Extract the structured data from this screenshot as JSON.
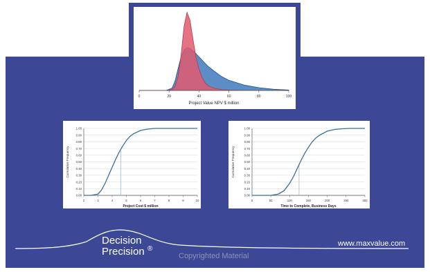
{
  "colors": {
    "background": "#3c4796",
    "dist_red": "#e05a6e",
    "dist_blue": "#2f6db6",
    "curve": "#3c6e96",
    "guide": "#8fb3c8"
  },
  "branding": {
    "name_line1": "Decision",
    "name_line2": "Precision",
    "reg_mark": "®",
    "website": "www.maxvalue.com",
    "copyright": "Copyrighted Material"
  },
  "chart_data": [
    {
      "type": "area",
      "title": "",
      "xlabel": "Project Value NPV $ million",
      "ylabel": "",
      "xlim": [
        0,
        100
      ],
      "x_ticks": [
        0,
        20,
        40,
        60,
        80,
        100
      ],
      "grid": false,
      "x": [
        0,
        18,
        22,
        24,
        26,
        28,
        30,
        32,
        34,
        36,
        38,
        40,
        42,
        44,
        46,
        50,
        55,
        60,
        70,
        80,
        90,
        100
      ],
      "series": [
        {
          "values": [
            0,
            0,
            0.01,
            0.05,
            0.18,
            0.45,
            0.82,
            1.0,
            0.9,
            0.65,
            0.42,
            0.27,
            0.17,
            0.1,
            0.06,
            0.03,
            0.01,
            0.005,
            0,
            0,
            0,
            0
          ]
        },
        {
          "values": [
            0,
            0,
            0.03,
            0.12,
            0.28,
            0.43,
            0.52,
            0.55,
            0.54,
            0.51,
            0.47,
            0.43,
            0.39,
            0.35,
            0.31,
            0.25,
            0.18,
            0.13,
            0.07,
            0.035,
            0.015,
            0.005
          ]
        }
      ]
    },
    {
      "type": "line",
      "title": "",
      "xlabel": "Project Cost $ million",
      "ylabel": "Cumulative Frequency",
      "xlim": [
        2,
        10
      ],
      "ylim": [
        0,
        1
      ],
      "x_ticks": [
        "2",
        "3",
        "4",
        "5",
        "6",
        "7",
        "8",
        "9",
        "10"
      ],
      "y_ticks": [
        "0.00",
        "0.10",
        "0.20",
        "0.30",
        "0.40",
        "0.50",
        "0.60",
        "0.70",
        "0.80",
        "0.90",
        "1.00"
      ],
      "grid": true,
      "marker_x": 4.6,
      "x": [
        2,
        2.5,
        3,
        3.25,
        3.5,
        3.75,
        4,
        4.25,
        4.5,
        4.75,
        5,
        5.25,
        5.5,
        6,
        6.5,
        7,
        8,
        9,
        10
      ],
      "series": [
        {
          "values": [
            0,
            0,
            0.02,
            0.08,
            0.18,
            0.3,
            0.42,
            0.54,
            0.65,
            0.74,
            0.82,
            0.88,
            0.92,
            0.97,
            0.99,
            1.0,
            1.0,
            1.0,
            1.0
          ]
        }
      ]
    },
    {
      "type": "line",
      "title": "",
      "xlabel": "Time to Complete, Business Days",
      "ylabel": "Cumulative Frequency",
      "xlim": [
        0,
        300
      ],
      "ylim": [
        0,
        1
      ],
      "x_ticks": [
        "0",
        "50",
        "100",
        "150",
        "200",
        "250",
        "300"
      ],
      "y_ticks": [
        "0.00",
        "0.10",
        "0.20",
        "0.30",
        "0.40",
        "0.50",
        "0.60",
        "0.70",
        "0.80",
        "0.90",
        "1.00"
      ],
      "grid": true,
      "marker_x": 125,
      "x": [
        0,
        50,
        70,
        85,
        100,
        110,
        120,
        130,
        140,
        150,
        160,
        170,
        180,
        200,
        220,
        240,
        260,
        300
      ],
      "series": [
        {
          "values": [
            0,
            0,
            0.02,
            0.07,
            0.18,
            0.28,
            0.4,
            0.52,
            0.63,
            0.72,
            0.8,
            0.86,
            0.9,
            0.96,
            0.985,
            0.995,
            1.0,
            1.0
          ]
        }
      ]
    }
  ]
}
